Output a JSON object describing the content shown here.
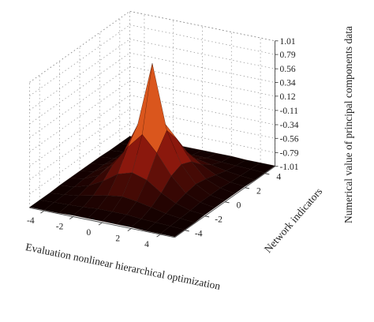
{
  "chart_data": {
    "type": "surface3d",
    "xlabel": "Evaluation nonlinear hierarchical optimization",
    "ylabel": "Network indicators",
    "zlabel": "Numerical value of principal components data",
    "x_ticks": [
      "-4",
      "-2",
      "0",
      "2",
      "4"
    ],
    "y_ticks": [
      "-4",
      "-2",
      "0",
      "2",
      "4"
    ],
    "z_ticks": [
      "1.01",
      "0.79",
      "0.56",
      "0.34",
      "0.12",
      "-0.11",
      "-0.34",
      "-0.56",
      "-0.79",
      "-1.01"
    ],
    "xlim": [
      -5,
      5
    ],
    "ylim": [
      -5,
      5
    ],
    "zlim": [
      -1.01,
      1.01
    ],
    "grid": true,
    "colormap": "hot",
    "x": [
      -5,
      -4,
      -3,
      -2,
      -1,
      0,
      1,
      2,
      3,
      4,
      5
    ],
    "y": [
      -5,
      -4,
      -3,
      -2,
      -1,
      0,
      1,
      2,
      3,
      4,
      5
    ],
    "z": [
      [
        -1.0,
        -1.0,
        -1.0,
        -0.99,
        -0.99,
        -0.99,
        -0.99,
        -0.99,
        -1.0,
        -1.0,
        -1.0
      ],
      [
        -1.0,
        -0.99,
        -0.98,
        -0.97,
        -0.95,
        -0.95,
        -0.95,
        -0.97,
        -0.98,
        -0.99,
        -1.0
      ],
      [
        -1.0,
        -0.98,
        -0.95,
        -0.9,
        -0.85,
        -0.82,
        -0.85,
        -0.9,
        -0.95,
        -0.98,
        -1.0
      ],
      [
        -0.99,
        -0.97,
        -0.9,
        -0.78,
        -0.62,
        -0.55,
        -0.62,
        -0.78,
        -0.9,
        -0.97,
        -0.99
      ],
      [
        -0.99,
        -0.95,
        -0.85,
        -0.62,
        -0.3,
        -0.05,
        -0.3,
        -0.62,
        -0.85,
        -0.95,
        -0.99
      ],
      [
        -0.99,
        -0.95,
        -0.82,
        -0.55,
        -0.05,
        0.98,
        -0.05,
        -0.55,
        -0.82,
        -0.95,
        -0.99
      ],
      [
        -0.99,
        -0.95,
        -0.85,
        -0.62,
        -0.3,
        -0.05,
        -0.3,
        -0.62,
        -0.85,
        -0.95,
        -0.99
      ],
      [
        -0.99,
        -0.97,
        -0.9,
        -0.78,
        -0.62,
        -0.55,
        -0.62,
        -0.78,
        -0.9,
        -0.97,
        -0.99
      ],
      [
        -1.0,
        -0.98,
        -0.95,
        -0.9,
        -0.85,
        -0.82,
        -0.85,
        -0.9,
        -0.95,
        -0.98,
        -1.0
      ],
      [
        -1.0,
        -0.99,
        -0.98,
        -0.97,
        -0.95,
        -0.95,
        -0.95,
        -0.97,
        -0.98,
        -0.99,
        -1.0
      ],
      [
        -1.0,
        -1.0,
        -1.0,
        -0.99,
        -0.99,
        -0.99,
        -0.99,
        -0.99,
        -1.0,
        -1.0,
        -1.0
      ]
    ]
  }
}
